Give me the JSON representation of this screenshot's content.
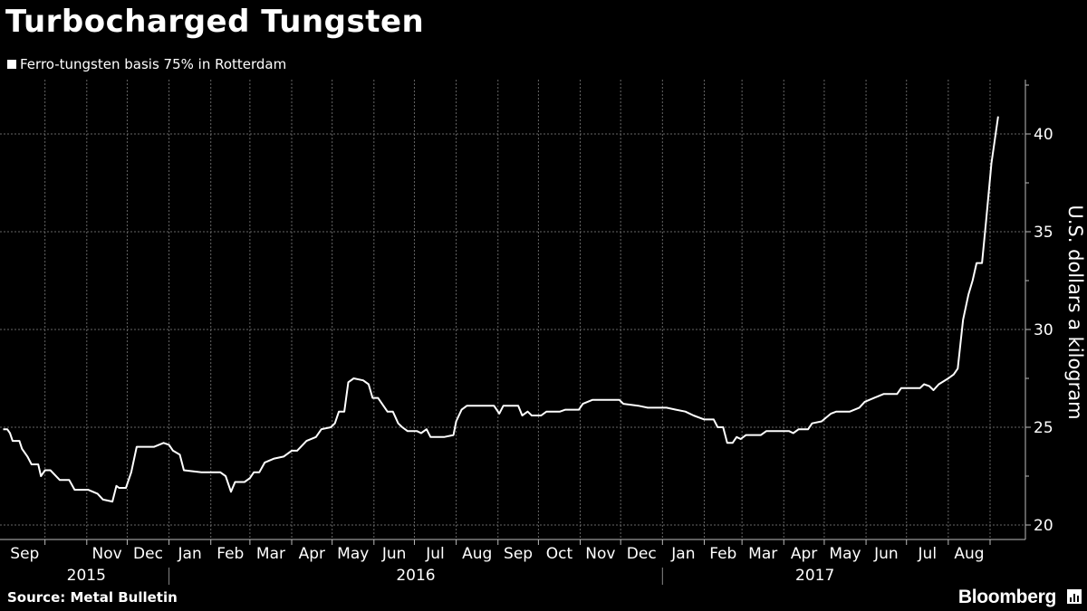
{
  "title": "Turbocharged Tungsten",
  "legend_label": "Ferro-tungsten basis 75% in Rotterdam",
  "source": "Source:  Metal Bulletin",
  "brand": "Bloomberg",
  "colors": {
    "background": "#000000",
    "line": "#ffffff",
    "grid": "#666666"
  },
  "chart_data": {
    "type": "line",
    "title": "Turbocharged Tungsten",
    "ylabel": "U.S. dollars a kilogram",
    "xlabel": "",
    "ylim": [
      20,
      42.5
    ],
    "yticks": [
      20,
      25,
      30,
      35,
      40
    ],
    "grid": true,
    "legend_placement": "top-left",
    "x_months": [
      "Sep",
      "Nov",
      "Dec",
      "Jan",
      "Feb",
      "Mar",
      "Apr",
      "May",
      "Jun",
      "Jul",
      "Aug",
      "Sep",
      "Oct",
      "Nov",
      "Dec",
      "Jan",
      "Feb",
      "Mar",
      "Apr",
      "May",
      "Jun",
      "Jul",
      "Aug"
    ],
    "x_years": [
      "2015",
      "2016",
      "2017"
    ],
    "series": [
      {
        "name": "Ferro-tungsten basis 75% in Rotterdam",
        "points": [
          [
            "2015-08-31",
            24.9
          ],
          [
            "2015-09-03",
            24.9
          ],
          [
            "2015-09-05",
            24.7
          ],
          [
            "2015-09-07",
            24.3
          ],
          [
            "2015-09-12",
            24.3
          ],
          [
            "2015-09-14",
            23.9
          ],
          [
            "2015-09-18",
            23.5
          ],
          [
            "2015-09-21",
            23.1
          ],
          [
            "2015-09-26",
            23.1
          ],
          [
            "2015-09-28",
            22.5
          ],
          [
            "2015-10-01",
            22.8
          ],
          [
            "2015-10-05",
            22.8
          ],
          [
            "2015-10-12",
            22.3
          ],
          [
            "2015-10-19",
            22.3
          ],
          [
            "2015-10-23",
            21.8
          ],
          [
            "2015-11-02",
            21.8
          ],
          [
            "2015-11-09",
            21.6
          ],
          [
            "2015-11-13",
            21.3
          ],
          [
            "2015-11-20",
            21.2
          ],
          [
            "2015-11-23",
            22.0
          ],
          [
            "2015-11-25",
            21.9
          ],
          [
            "2015-11-30",
            21.9
          ],
          [
            "2015-12-04",
            22.7
          ],
          [
            "2015-12-08",
            24.0
          ],
          [
            "2015-12-21",
            24.0
          ],
          [
            "2015-12-28",
            24.2
          ],
          [
            "2016-01-01",
            24.1
          ],
          [
            "2016-01-04",
            23.8
          ],
          [
            "2016-01-09",
            23.6
          ],
          [
            "2016-01-12",
            22.8
          ],
          [
            "2016-01-25",
            22.7
          ],
          [
            "2016-02-01",
            22.7
          ],
          [
            "2016-02-08",
            22.7
          ],
          [
            "2016-02-12",
            22.5
          ],
          [
            "2016-02-16",
            21.7
          ],
          [
            "2016-02-19",
            22.2
          ],
          [
            "2016-02-26",
            22.2
          ],
          [
            "2016-03-01",
            22.4
          ],
          [
            "2016-03-04",
            22.7
          ],
          [
            "2016-03-08",
            22.7
          ],
          [
            "2016-03-12",
            23.2
          ],
          [
            "2016-03-19",
            23.4
          ],
          [
            "2016-03-26",
            23.5
          ],
          [
            "2016-04-01",
            23.8
          ],
          [
            "2016-04-05",
            23.8
          ],
          [
            "2016-04-12",
            24.3
          ],
          [
            "2016-04-19",
            24.5
          ],
          [
            "2016-04-23",
            24.9
          ],
          [
            "2016-04-30",
            25.0
          ],
          [
            "2016-05-03",
            25.2
          ],
          [
            "2016-05-06",
            25.8
          ],
          [
            "2016-05-10",
            25.8
          ],
          [
            "2016-05-13",
            27.3
          ],
          [
            "2016-05-17",
            27.5
          ],
          [
            "2016-05-24",
            27.4
          ],
          [
            "2016-05-28",
            27.2
          ],
          [
            "2016-05-31",
            26.5
          ],
          [
            "2016-06-04",
            26.5
          ],
          [
            "2016-06-11",
            25.8
          ],
          [
            "2016-06-15",
            25.8
          ],
          [
            "2016-06-19",
            25.2
          ],
          [
            "2016-06-22",
            25.0
          ],
          [
            "2016-06-26",
            24.8
          ],
          [
            "2016-07-03",
            24.8
          ],
          [
            "2016-07-06",
            24.7
          ],
          [
            "2016-07-10",
            24.9
          ],
          [
            "2016-07-13",
            24.5
          ],
          [
            "2016-07-23",
            24.5
          ],
          [
            "2016-07-30",
            24.6
          ],
          [
            "2016-08-01",
            25.3
          ],
          [
            "2016-08-05",
            25.9
          ],
          [
            "2016-08-09",
            26.1
          ],
          [
            "2016-08-29",
            26.1
          ],
          [
            "2016-09-02",
            25.7
          ],
          [
            "2016-09-05",
            26.1
          ],
          [
            "2016-09-16",
            26.1
          ],
          [
            "2016-09-19",
            25.6
          ],
          [
            "2016-09-23",
            25.8
          ],
          [
            "2016-09-26",
            25.6
          ],
          [
            "2016-10-03",
            25.6
          ],
          [
            "2016-10-07",
            25.8
          ],
          [
            "2016-10-17",
            25.8
          ],
          [
            "2016-10-21",
            25.9
          ],
          [
            "2016-10-31",
            25.9
          ],
          [
            "2016-11-03",
            26.2
          ],
          [
            "2016-11-10",
            26.4
          ],
          [
            "2016-11-30",
            26.4
          ],
          [
            "2016-12-03",
            26.2
          ],
          [
            "2016-12-14",
            26.1
          ],
          [
            "2016-12-21",
            26.0
          ],
          [
            "2017-01-04",
            26.0
          ],
          [
            "2017-01-11",
            25.9
          ],
          [
            "2017-01-18",
            25.8
          ],
          [
            "2017-01-24",
            25.6
          ],
          [
            "2017-02-01",
            25.4
          ],
          [
            "2017-02-08",
            25.4
          ],
          [
            "2017-02-11",
            25.0
          ],
          [
            "2017-02-15",
            25.0
          ],
          [
            "2017-02-18",
            24.2
          ],
          [
            "2017-02-22",
            24.2
          ],
          [
            "2017-02-25",
            24.5
          ],
          [
            "2017-02-28",
            24.4
          ],
          [
            "2017-03-04",
            24.6
          ],
          [
            "2017-03-15",
            24.6
          ],
          [
            "2017-03-19",
            24.8
          ],
          [
            "2017-04-05",
            24.8
          ],
          [
            "2017-04-08",
            24.7
          ],
          [
            "2017-04-12",
            24.9
          ],
          [
            "2017-04-19",
            24.9
          ],
          [
            "2017-04-22",
            25.2
          ],
          [
            "2017-04-29",
            25.3
          ],
          [
            "2017-05-06",
            25.7
          ],
          [
            "2017-05-10",
            25.8
          ],
          [
            "2017-05-20",
            25.8
          ],
          [
            "2017-05-27",
            26.0
          ],
          [
            "2017-05-31",
            26.3
          ],
          [
            "2017-06-07",
            26.5
          ],
          [
            "2017-06-14",
            26.7
          ],
          [
            "2017-06-24",
            26.7
          ],
          [
            "2017-06-27",
            27.0
          ],
          [
            "2017-07-04",
            27.0
          ],
          [
            "2017-07-11",
            27.0
          ],
          [
            "2017-07-14",
            27.2
          ],
          [
            "2017-07-18",
            27.1
          ],
          [
            "2017-07-21",
            26.9
          ],
          [
            "2017-07-25",
            27.2
          ],
          [
            "2017-08-01",
            27.5
          ],
          [
            "2017-08-05",
            27.7
          ],
          [
            "2017-08-08",
            28.0
          ],
          [
            "2017-08-12",
            30.5
          ],
          [
            "2017-08-16",
            31.8
          ],
          [
            "2017-08-19",
            32.5
          ],
          [
            "2017-08-22",
            33.4
          ],
          [
            "2017-08-26",
            33.4
          ],
          [
            "2017-08-29",
            35.5
          ],
          [
            "2017-09-02",
            38.5
          ],
          [
            "2017-09-07",
            40.9
          ]
        ]
      }
    ]
  }
}
